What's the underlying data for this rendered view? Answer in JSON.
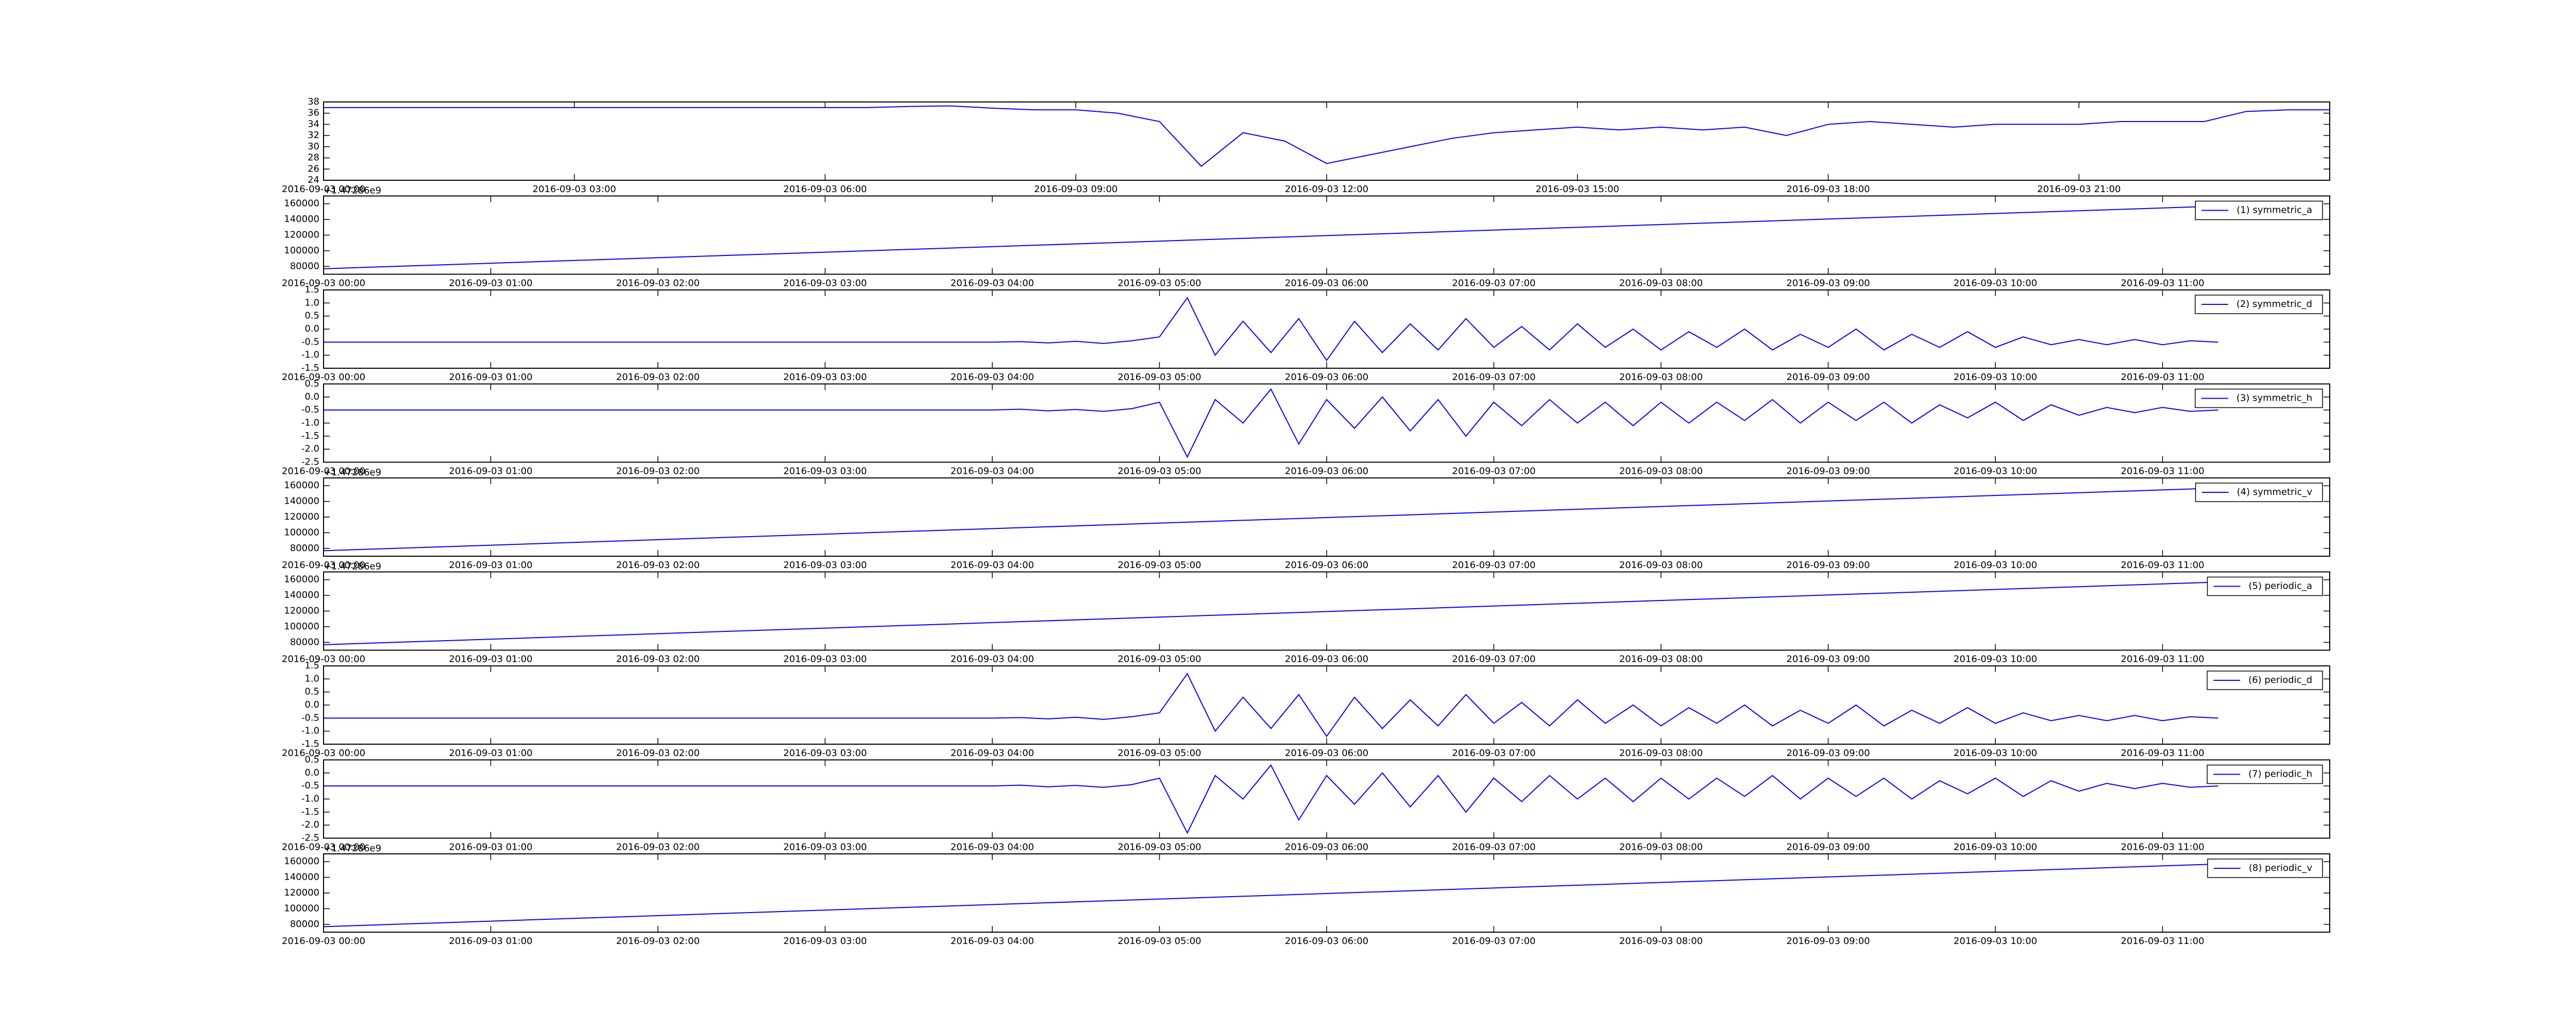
{
  "chart_data": [
    {
      "type": "line",
      "x": [
        "2016-09-03 00:00",
        "2016-09-03 06:30",
        "2016-09-03 07:00",
        "2016-09-03 07:30",
        "2016-09-03 08:00",
        "2016-09-03 08:30",
        "2016-09-03 09:00",
        "2016-09-03 09:30",
        "2016-09-03 10:00",
        "2016-09-03 10:30",
        "2016-09-03 11:00",
        "2016-09-03 11:30",
        "2016-09-03 12:00",
        "2016-09-03 12:30",
        "2016-09-03 13:00",
        "2016-09-03 13:30",
        "2016-09-03 14:00",
        "2016-09-03 14:30",
        "2016-09-03 15:00",
        "2016-09-03 15:30",
        "2016-09-03 16:00",
        "2016-09-03 16:30",
        "2016-09-03 17:00",
        "2016-09-03 17:30",
        "2016-09-03 18:00",
        "2016-09-03 18:30",
        "2016-09-03 19:00",
        "2016-09-03 19:30",
        "2016-09-03 20:00",
        "2016-09-03 20:30",
        "2016-09-03 21:00",
        "2016-09-03 21:30",
        "2016-09-03 22:00",
        "2016-09-03 22:30",
        "2016-09-03 23:00",
        "2016-09-03 23:30",
        "2016-09-04 00:00"
      ],
      "series": [
        {
          "color": "#0000ff",
          "values": [
            37.0,
            37.0,
            37.2,
            37.3,
            36.9,
            36.6,
            36.6,
            36.0,
            34.5,
            26.5,
            32.5,
            31.0,
            27.0,
            28.5,
            30.0,
            31.5,
            32.5,
            33.0,
            33.5,
            33.0,
            33.5,
            33.0,
            33.5,
            32.0,
            34.0,
            34.5,
            34.0,
            33.5,
            34.0,
            34.0,
            34.0,
            34.5,
            34.5,
            34.5,
            36.3,
            36.6,
            36.6
          ]
        }
      ],
      "xlim": [
        "2016-09-03 00:00",
        "2016-09-04 00:00"
      ],
      "xticks": [
        "2016-09-03 00:00",
        "2016-09-03 03:00",
        "2016-09-03 06:00",
        "2016-09-03 09:00",
        "2016-09-03 12:00",
        "2016-09-03 15:00",
        "2016-09-03 18:00",
        "2016-09-03 21:00"
      ],
      "ylim": [
        24,
        38
      ],
      "yticks": [
        24,
        26,
        28,
        30,
        32,
        34,
        36,
        38
      ]
    },
    {
      "type": "line",
      "x": [
        "2016-09-03 00:00",
        "2016-09-03 11:20"
      ],
      "series": [
        {
          "name": "(1) symmetric_a",
          "color": "#0000ff",
          "values": [
            77000,
            157000
          ]
        }
      ],
      "xlim": [
        "2016-09-03 00:00",
        "2016-09-03 12:00"
      ],
      "xticks": [
        "2016-09-03 00:00",
        "2016-09-03 01:00",
        "2016-09-03 02:00",
        "2016-09-03 03:00",
        "2016-09-03 04:00",
        "2016-09-03 05:00",
        "2016-09-03 06:00",
        "2016-09-03 07:00",
        "2016-09-03 08:00",
        "2016-09-03 09:00",
        "2016-09-03 10:00",
        "2016-09-03 11:00"
      ],
      "ylim": [
        70000,
        170000
      ],
      "yticks": [
        80000,
        100000,
        120000,
        140000,
        160000
      ],
      "offset_text": "+1.47286e9",
      "legend": "upper right"
    },
    {
      "type": "line",
      "x": [
        "2016-09-03 00:00",
        "2016-09-03 04:00",
        "2016-09-03 04:10",
        "2016-09-03 04:20",
        "2016-09-03 04:30",
        "2016-09-03 04:40",
        "2016-09-03 04:50",
        "2016-09-03 05:00",
        "2016-09-03 05:10",
        "2016-09-03 05:20",
        "2016-09-03 05:30",
        "2016-09-03 05:40",
        "2016-09-03 05:50",
        "2016-09-03 06:00",
        "2016-09-03 06:10",
        "2016-09-03 06:20",
        "2016-09-03 06:30",
        "2016-09-03 06:40",
        "2016-09-03 06:50",
        "2016-09-03 07:00",
        "2016-09-03 07:10",
        "2016-09-03 07:20",
        "2016-09-03 07:30",
        "2016-09-03 07:40",
        "2016-09-03 07:50",
        "2016-09-03 08:00",
        "2016-09-03 08:10",
        "2016-09-03 08:20",
        "2016-09-03 08:30",
        "2016-09-03 08:40",
        "2016-09-03 08:50",
        "2016-09-03 09:00",
        "2016-09-03 09:10",
        "2016-09-03 09:20",
        "2016-09-03 09:30",
        "2016-09-03 09:40",
        "2016-09-03 09:50",
        "2016-09-03 10:00",
        "2016-09-03 10:10",
        "2016-09-03 10:20",
        "2016-09-03 10:30",
        "2016-09-03 10:40",
        "2016-09-03 10:50",
        "2016-09-03 11:00",
        "2016-09-03 11:10",
        "2016-09-03 11:20"
      ],
      "series": [
        {
          "name": "(2) symmetric_d",
          "color": "#0000ff",
          "values": [
            -0.5,
            -0.5,
            -0.48,
            -0.53,
            -0.47,
            -0.55,
            -0.45,
            -0.3,
            1.2,
            -1.0,
            0.3,
            -0.9,
            0.4,
            -1.2,
            0.3,
            -0.9,
            0.2,
            -0.8,
            0.4,
            -0.7,
            0.1,
            -0.8,
            0.2,
            -0.7,
            0.0,
            -0.8,
            -0.1,
            -0.7,
            0.0,
            -0.8,
            -0.2,
            -0.7,
            0.0,
            -0.8,
            -0.2,
            -0.7,
            -0.1,
            -0.7,
            -0.3,
            -0.6,
            -0.4,
            -0.6,
            -0.4,
            -0.6,
            -0.45,
            -0.5
          ]
        }
      ],
      "xlim": [
        "2016-09-03 00:00",
        "2016-09-03 12:00"
      ],
      "xticks": [
        "2016-09-03 00:00",
        "2016-09-03 01:00",
        "2016-09-03 02:00",
        "2016-09-03 03:00",
        "2016-09-03 04:00",
        "2016-09-03 05:00",
        "2016-09-03 06:00",
        "2016-09-03 07:00",
        "2016-09-03 08:00",
        "2016-09-03 09:00",
        "2016-09-03 10:00",
        "2016-09-03 11:00"
      ],
      "ylim": [
        -1.5,
        1.5
      ],
      "yticks": [
        -1.5,
        {
          "value": -1,
          "label": "-1.0"
        },
        -0.5,
        {
          "value": 0,
          "label": "0.0"
        },
        0.5,
        {
          "value": 1,
          "label": "1.0"
        },
        1.5
      ],
      "legend": "upper right"
    },
    {
      "type": "line",
      "x": [
        "2016-09-03 00:00",
        "2016-09-03 04:00",
        "2016-09-03 04:10",
        "2016-09-03 04:20",
        "2016-09-03 04:30",
        "2016-09-03 04:40",
        "2016-09-03 04:50",
        "2016-09-03 05:00",
        "2016-09-03 05:10",
        "2016-09-03 05:20",
        "2016-09-03 05:30",
        "2016-09-03 05:40",
        "2016-09-03 05:50",
        "2016-09-03 06:00",
        "2016-09-03 06:10",
        "2016-09-03 06:20",
        "2016-09-03 06:30",
        "2016-09-03 06:40",
        "2016-09-03 06:50",
        "2016-09-03 07:00",
        "2016-09-03 07:10",
        "2016-09-03 07:20",
        "2016-09-03 07:30",
        "2016-09-03 07:40",
        "2016-09-03 07:50",
        "2016-09-03 08:00",
        "2016-09-03 08:10",
        "2016-09-03 08:20",
        "2016-09-03 08:30",
        "2016-09-03 08:40",
        "2016-09-03 08:50",
        "2016-09-03 09:00",
        "2016-09-03 09:10",
        "2016-09-03 09:20",
        "2016-09-03 09:30",
        "2016-09-03 09:40",
        "2016-09-03 09:50",
        "2016-09-03 10:00",
        "2016-09-03 10:10",
        "2016-09-03 10:20",
        "2016-09-03 10:30",
        "2016-09-03 10:40",
        "2016-09-03 10:50",
        "2016-09-03 11:00",
        "2016-09-03 11:10",
        "2016-09-03 11:20"
      ],
      "series": [
        {
          "name": "(3) symmetric_h",
          "color": "#0000ff",
          "values": [
            -0.5,
            -0.5,
            -0.47,
            -0.53,
            -0.48,
            -0.55,
            -0.45,
            -0.2,
            -2.3,
            -0.1,
            -1.0,
            0.3,
            -1.8,
            -0.1,
            -1.2,
            0.0,
            -1.3,
            -0.1,
            -1.5,
            -0.2,
            -1.1,
            -0.1,
            -1.0,
            -0.2,
            -1.1,
            -0.2,
            -1.0,
            -0.2,
            -0.9,
            -0.1,
            -1.0,
            -0.2,
            -0.9,
            -0.2,
            -1.0,
            -0.3,
            -0.8,
            -0.2,
            -0.9,
            -0.3,
            -0.7,
            -0.4,
            -0.6,
            -0.4,
            -0.55,
            -0.5
          ]
        }
      ],
      "xlim": [
        "2016-09-03 00:00",
        "2016-09-03 12:00"
      ],
      "xticks": [
        "2016-09-03 00:00",
        "2016-09-03 01:00",
        "2016-09-03 02:00",
        "2016-09-03 03:00",
        "2016-09-03 04:00",
        "2016-09-03 05:00",
        "2016-09-03 06:00",
        "2016-09-03 07:00",
        "2016-09-03 08:00",
        "2016-09-03 09:00",
        "2016-09-03 10:00",
        "2016-09-03 11:00"
      ],
      "ylim": [
        -2.5,
        0.5
      ],
      "yticks": [
        -2.5,
        {
          "value": -2,
          "label": "-2.0"
        },
        -1.5,
        {
          "value": -1,
          "label": "-1.0"
        },
        -0.5,
        {
          "value": 0,
          "label": "0.0"
        },
        0.5
      ],
      "legend": "upper right"
    },
    {
      "type": "line",
      "x": [
        "2016-09-03 00:00",
        "2016-09-03 11:20"
      ],
      "series": [
        {
          "name": "(4) symmetric_v",
          "color": "#0000ff",
          "values": [
            77000,
            157000
          ]
        }
      ],
      "xlim": [
        "2016-09-03 00:00",
        "2016-09-03 12:00"
      ],
      "xticks": [
        "2016-09-03 00:00",
        "2016-09-03 01:00",
        "2016-09-03 02:00",
        "2016-09-03 03:00",
        "2016-09-03 04:00",
        "2016-09-03 05:00",
        "2016-09-03 06:00",
        "2016-09-03 07:00",
        "2016-09-03 08:00",
        "2016-09-03 09:00",
        "2016-09-03 10:00",
        "2016-09-03 11:00"
      ],
      "ylim": [
        70000,
        170000
      ],
      "yticks": [
        80000,
        100000,
        120000,
        140000,
        160000
      ],
      "offset_text": "+1.47286e9",
      "legend": "upper right"
    },
    {
      "type": "line",
      "x": [
        "2016-09-03 00:00",
        "2016-09-03 11:20"
      ],
      "series": [
        {
          "name": "(5) periodic_a",
          "color": "#0000ff",
          "values": [
            77000,
            157000
          ]
        }
      ],
      "xlim": [
        "2016-09-03 00:00",
        "2016-09-03 12:00"
      ],
      "xticks": [
        "2016-09-03 00:00",
        "2016-09-03 01:00",
        "2016-09-03 02:00",
        "2016-09-03 03:00",
        "2016-09-03 04:00",
        "2016-09-03 05:00",
        "2016-09-03 06:00",
        "2016-09-03 07:00",
        "2016-09-03 08:00",
        "2016-09-03 09:00",
        "2016-09-03 10:00",
        "2016-09-03 11:00"
      ],
      "ylim": [
        70000,
        170000
      ],
      "yticks": [
        80000,
        100000,
        120000,
        140000,
        160000
      ],
      "offset_text": "+1.47286e9",
      "legend": "upper right"
    },
    {
      "type": "line",
      "x": [
        "2016-09-03 00:00",
        "2016-09-03 04:00",
        "2016-09-03 04:10",
        "2016-09-03 04:20",
        "2016-09-03 04:30",
        "2016-09-03 04:40",
        "2016-09-03 04:50",
        "2016-09-03 05:00",
        "2016-09-03 05:10",
        "2016-09-03 05:20",
        "2016-09-03 05:30",
        "2016-09-03 05:40",
        "2016-09-03 05:50",
        "2016-09-03 06:00",
        "2016-09-03 06:10",
        "2016-09-03 06:20",
        "2016-09-03 06:30",
        "2016-09-03 06:40",
        "2016-09-03 06:50",
        "2016-09-03 07:00",
        "2016-09-03 07:10",
        "2016-09-03 07:20",
        "2016-09-03 07:30",
        "2016-09-03 07:40",
        "2016-09-03 07:50",
        "2016-09-03 08:00",
        "2016-09-03 08:10",
        "2016-09-03 08:20",
        "2016-09-03 08:30",
        "2016-09-03 08:40",
        "2016-09-03 08:50",
        "2016-09-03 09:00",
        "2016-09-03 09:10",
        "2016-09-03 09:20",
        "2016-09-03 09:30",
        "2016-09-03 09:40",
        "2016-09-03 09:50",
        "2016-09-03 10:00",
        "2016-09-03 10:10",
        "2016-09-03 10:20",
        "2016-09-03 10:30",
        "2016-09-03 10:40",
        "2016-09-03 10:50",
        "2016-09-03 11:00",
        "2016-09-03 11:10",
        "2016-09-03 11:20"
      ],
      "series": [
        {
          "name": "(6) periodic_d",
          "color": "#0000ff",
          "values": [
            -0.5,
            -0.5,
            -0.48,
            -0.53,
            -0.47,
            -0.55,
            -0.45,
            -0.3,
            1.2,
            -1.0,
            0.3,
            -0.9,
            0.4,
            -1.2,
            0.3,
            -0.9,
            0.2,
            -0.8,
            0.4,
            -0.7,
            0.1,
            -0.8,
            0.2,
            -0.7,
            0.0,
            -0.8,
            -0.1,
            -0.7,
            0.0,
            -0.8,
            -0.2,
            -0.7,
            0.0,
            -0.8,
            -0.2,
            -0.7,
            -0.1,
            -0.7,
            -0.3,
            -0.6,
            -0.4,
            -0.6,
            -0.4,
            -0.6,
            -0.45,
            -0.5
          ]
        }
      ],
      "xlim": [
        "2016-09-03 00:00",
        "2016-09-03 12:00"
      ],
      "xticks": [
        "2016-09-03 00:00",
        "2016-09-03 01:00",
        "2016-09-03 02:00",
        "2016-09-03 03:00",
        "2016-09-03 04:00",
        "2016-09-03 05:00",
        "2016-09-03 06:00",
        "2016-09-03 07:00",
        "2016-09-03 08:00",
        "2016-09-03 09:00",
        "2016-09-03 10:00",
        "2016-09-03 11:00"
      ],
      "ylim": [
        -1.5,
        1.5
      ],
      "yticks": [
        -1.5,
        {
          "value": -1,
          "label": "-1.0"
        },
        -0.5,
        {
          "value": 0,
          "label": "0.0"
        },
        0.5,
        {
          "value": 1,
          "label": "1.0"
        },
        1.5
      ],
      "legend": "upper right"
    },
    {
      "type": "line",
      "x": [
        "2016-09-03 00:00",
        "2016-09-03 04:00",
        "2016-09-03 04:10",
        "2016-09-03 04:20",
        "2016-09-03 04:30",
        "2016-09-03 04:40",
        "2016-09-03 04:50",
        "2016-09-03 05:00",
        "2016-09-03 05:10",
        "2016-09-03 05:20",
        "2016-09-03 05:30",
        "2016-09-03 05:40",
        "2016-09-03 05:50",
        "2016-09-03 06:00",
        "2016-09-03 06:10",
        "2016-09-03 06:20",
        "2016-09-03 06:30",
        "2016-09-03 06:40",
        "2016-09-03 06:50",
        "2016-09-03 07:00",
        "2016-09-03 07:10",
        "2016-09-03 07:20",
        "2016-09-03 07:30",
        "2016-09-03 07:40",
        "2016-09-03 07:50",
        "2016-09-03 08:00",
        "2016-09-03 08:10",
        "2016-09-03 08:20",
        "2016-09-03 08:30",
        "2016-09-03 08:40",
        "2016-09-03 08:50",
        "2016-09-03 09:00",
        "2016-09-03 09:10",
        "2016-09-03 09:20",
        "2016-09-03 09:30",
        "2016-09-03 09:40",
        "2016-09-03 09:50",
        "2016-09-03 10:00",
        "2016-09-03 10:10",
        "2016-09-03 10:20",
        "2016-09-03 10:30",
        "2016-09-03 10:40",
        "2016-09-03 10:50",
        "2016-09-03 11:00",
        "2016-09-03 11:10",
        "2016-09-03 11:20"
      ],
      "series": [
        {
          "name": "(7) periodic_h",
          "color": "#0000ff",
          "values": [
            -0.5,
            -0.5,
            -0.47,
            -0.53,
            -0.48,
            -0.55,
            -0.45,
            -0.2,
            -2.3,
            -0.1,
            -1.0,
            0.3,
            -1.8,
            -0.1,
            -1.2,
            0.0,
            -1.3,
            -0.1,
            -1.5,
            -0.2,
            -1.1,
            -0.1,
            -1.0,
            -0.2,
            -1.1,
            -0.2,
            -1.0,
            -0.2,
            -0.9,
            -0.1,
            -1.0,
            -0.2,
            -0.9,
            -0.2,
            -1.0,
            -0.3,
            -0.8,
            -0.2,
            -0.9,
            -0.3,
            -0.7,
            -0.4,
            -0.6,
            -0.4,
            -0.55,
            -0.5
          ]
        }
      ],
      "xlim": [
        "2016-09-03 00:00",
        "2016-09-03 12:00"
      ],
      "xticks": [
        "2016-09-03 00:00",
        "2016-09-03 01:00",
        "2016-09-03 02:00",
        "2016-09-03 03:00",
        "2016-09-03 04:00",
        "2016-09-03 05:00",
        "2016-09-03 06:00",
        "2016-09-03 07:00",
        "2016-09-03 08:00",
        "2016-09-03 09:00",
        "2016-09-03 10:00",
        "2016-09-03 11:00"
      ],
      "ylim": [
        -2.5,
        0.5
      ],
      "yticks": [
        -2.5,
        {
          "value": -2,
          "label": "-2.0"
        },
        -1.5,
        {
          "value": -1,
          "label": "-1.0"
        },
        -0.5,
        {
          "value": 0,
          "label": "0.0"
        },
        0.5
      ],
      "legend": "upper right"
    },
    {
      "type": "line",
      "x": [
        "2016-09-03 00:00",
        "2016-09-03 11:20"
      ],
      "series": [
        {
          "name": "(8) periodic_v",
          "color": "#0000ff",
          "values": [
            77000,
            157000
          ]
        }
      ],
      "xlim": [
        "2016-09-03 00:00",
        "2016-09-03 12:00"
      ],
      "xticks": [
        "2016-09-03 00:00",
        "2016-09-03 01:00",
        "2016-09-03 02:00",
        "2016-09-03 03:00",
        "2016-09-03 04:00",
        "2016-09-03 05:00",
        "2016-09-03 06:00",
        "2016-09-03 07:00",
        "2016-09-03 08:00",
        "2016-09-03 09:00",
        "2016-09-03 10:00",
        "2016-09-03 11:00"
      ],
      "ylim": [
        70000,
        170000
      ],
      "yticks": [
        80000,
        100000,
        120000,
        140000,
        160000
      ],
      "offset_text": "+1.47286e9",
      "legend": "upper right"
    }
  ]
}
